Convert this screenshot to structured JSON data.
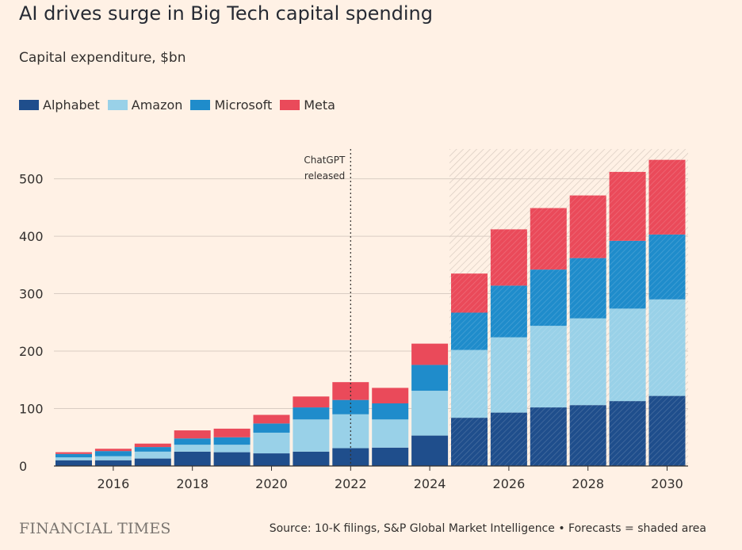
{
  "title": "AI drives surge in Big Tech capital spending",
  "subtitle": "Capital expenditure, $bn",
  "footer": {
    "brand": "FINANCIAL TIMES",
    "source": "Source: 10-K filings, S&P Global Market Intelligence • Forecasts = shaded area"
  },
  "colors": {
    "background": "#fff1e5",
    "Alphabet": "#1f4e8c",
    "Amazon": "#99d1e8",
    "Microsoft": "#1f8ccb",
    "Meta": "#ea4a5a"
  },
  "chart_data": {
    "type": "bar",
    "stacked": true,
    "categories": [
      "2015",
      "2016",
      "2017",
      "2018",
      "2019",
      "2020",
      "2021",
      "2022",
      "2023",
      "2024",
      "2025",
      "2026",
      "2027",
      "2028",
      "2029",
      "2030"
    ],
    "x_tick_labels": [
      "2016",
      "2018",
      "2020",
      "2022",
      "2024",
      "2026",
      "2028",
      "2030"
    ],
    "series": [
      {
        "name": "Alphabet",
        "values": [
          10,
          10,
          13,
          25,
          24,
          22,
          25,
          31,
          32,
          53,
          84,
          93,
          102,
          106,
          113,
          122
        ]
      },
      {
        "name": "Amazon",
        "values": [
          5,
          7,
          12,
          12,
          13,
          36,
          56,
          59,
          49,
          78,
          118,
          131,
          142,
          151,
          161,
          168
        ]
      },
      {
        "name": "Microsoft",
        "values": [
          6,
          9,
          8,
          11,
          13,
          16,
          21,
          25,
          28,
          45,
          65,
          90,
          98,
          105,
          118,
          113
        ]
      },
      {
        "name": "Meta",
        "values": [
          3,
          4,
          6,
          14,
          15,
          15,
          19,
          31,
          27,
          37,
          68,
          98,
          107,
          109,
          120,
          130
        ]
      }
    ],
    "y_ticks": [
      0,
      100,
      200,
      300,
      400,
      500
    ],
    "ylim": [
      0,
      550
    ],
    "grid": true,
    "legend_position": "top-left",
    "annotation": {
      "label_line1": "ChatGPT",
      "label_line2": "released",
      "at_year": "2022"
    },
    "forecast_start": "2025",
    "forecast_label": "Forecasts = shaded area"
  }
}
